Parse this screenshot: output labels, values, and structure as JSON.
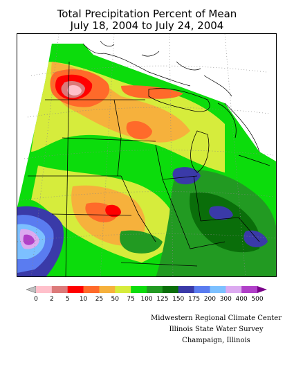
{
  "title": {
    "line1": "Total Precipitation Percent of Mean",
    "line2": "July 18, 2004 to July 24, 2004"
  },
  "legend": {
    "labels": [
      "0",
      "2",
      "5",
      "10",
      "25",
      "50",
      "75",
      "100",
      "125",
      "150",
      "175",
      "200",
      "300",
      "400",
      "500"
    ],
    "colors": [
      "#c0c0c0",
      "#ffc0cb",
      "#dc7a7a",
      "#ff0000",
      "#ff6a2a",
      "#f6b13c",
      "#d6ec3c",
      "#0cdc0c",
      "#229a22",
      "#0a6e0a",
      "#3a3aa8",
      "#5a7cf0",
      "#7cc0ff",
      "#dcaaf0",
      "#b040c8",
      "#7a008a"
    ]
  },
  "credits": {
    "line1": "Midwestern Regional Climate Center",
    "line2": "Illinois State Water Survey",
    "line3": "Champaign, Illinois"
  },
  "palette": {
    "lightpink": "#ffc0cb",
    "rose": "#dc7a7a",
    "red": "#ff0000",
    "orange": "#ff6a2a",
    "lightorange": "#f6b13c",
    "yellowgreen": "#d6ec3c",
    "green": "#0cdc0c",
    "medgreen": "#229a22",
    "darkgreen": "#0a6e0a",
    "navy": "#3a3aa8",
    "blue": "#5a7cf0",
    "lightblue": "#7cc0ff",
    "lavender": "#dcaaf0",
    "purple": "#b040c8",
    "darkpurple": "#7a008a"
  }
}
